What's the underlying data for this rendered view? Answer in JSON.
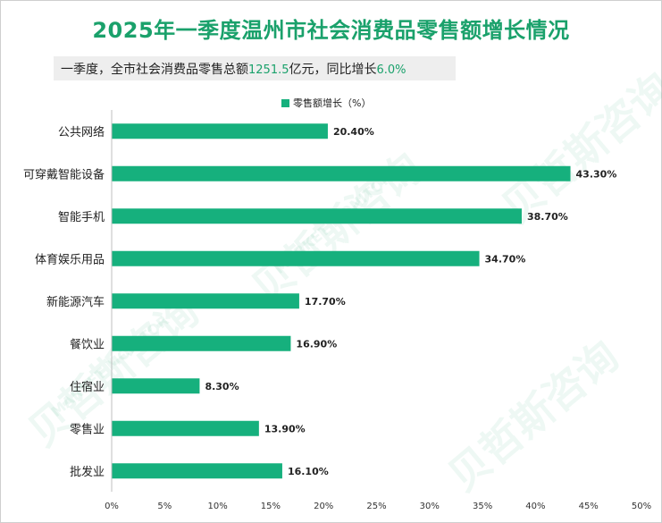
{
  "header": {
    "title": "2025年一季度温州市社会消费品零售额增长情况",
    "subtitle_prefix": "一季度，全市社会消费品零售总额",
    "subtitle_value": "1251.5",
    "subtitle_mid": "亿元，同比增长",
    "subtitle_growth": "6.0%"
  },
  "legend": {
    "label": "零售额增长（%）",
    "color": "#16b07d"
  },
  "watermark": {
    "cn": "贝哲斯咨询",
    "en": "MARKET MONITOR"
  },
  "chart_data": {
    "type": "bar",
    "orientation": "horizontal",
    "categories": [
      "公共网络",
      "可穿戴智能设备",
      "智能手机",
      "体育娱乐用品",
      "新能源汽车",
      "餐饮业",
      "住宿业",
      "零售业",
      "批发业"
    ],
    "series": [
      {
        "name": "零售额增长（%）",
        "values": [
          20.4,
          43.3,
          38.7,
          34.7,
          17.7,
          16.9,
          8.3,
          13.9,
          16.1
        ]
      }
    ],
    "value_labels": [
      "20.40%",
      "43.30%",
      "38.70%",
      "34.70%",
      "17.70%",
      "16.90%",
      "8.30%",
      "13.90%",
      "16.10%"
    ],
    "xlim": [
      0,
      50
    ],
    "xticks": [
      0,
      5,
      10,
      15,
      20,
      25,
      30,
      35,
      40,
      45,
      50
    ],
    "xtick_labels": [
      "0%",
      "5%",
      "10%",
      "15%",
      "20%",
      "25%",
      "30%",
      "35%",
      "40%",
      "45%",
      "50%"
    ],
    "grid": false,
    "legend_position": "top",
    "bar_color": "#16b07d"
  }
}
